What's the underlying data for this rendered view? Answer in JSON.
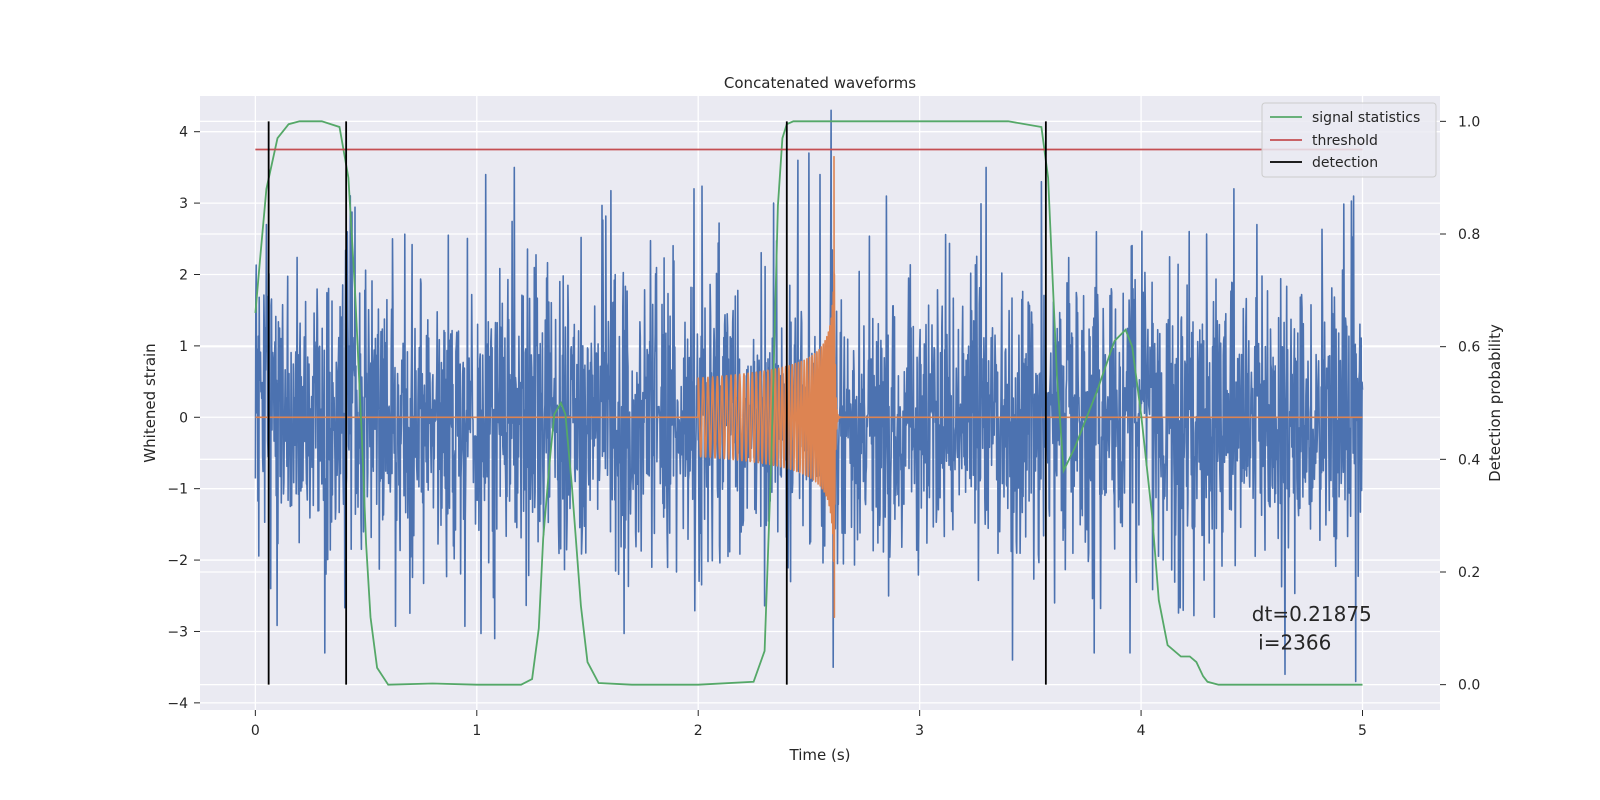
{
  "chart_data": {
    "type": "line",
    "title": "Concatenated waveforms",
    "xlabel": "Time (s)",
    "ylabel": "Whitened strain",
    "y2label": "Detection probability",
    "xlim": [
      -0.25,
      5.35
    ],
    "ylim": [
      -4.1,
      4.5
    ],
    "y2lim": [
      -0.045,
      1.045
    ],
    "xticks": [
      0,
      1,
      2,
      3,
      4,
      5
    ],
    "yticks": [
      -4,
      -3,
      -2,
      -1,
      0,
      1,
      2,
      3,
      4
    ],
    "y2ticks": [
      0.0,
      0.2,
      0.4,
      0.6,
      0.8,
      1.0
    ],
    "xtick_labels": [
      "0",
      "1",
      "2",
      "3",
      "4",
      "5"
    ],
    "ytick_labels": [
      "−4",
      "−3",
      "−2",
      "−1",
      "0",
      "1",
      "2",
      "3",
      "4"
    ],
    "y2tick_labels": [
      "0.0",
      "0.2",
      "0.4",
      "0.6",
      "0.8",
      "1.0"
    ],
    "grid": true,
    "legend_position": "top-right",
    "legend": [
      {
        "label": "signal statistics",
        "color": "#55a868"
      },
      {
        "label": "threshold",
        "color": "#c44e52"
      },
      {
        "label": "detection",
        "color": "#000000"
      }
    ],
    "colors": {
      "noise": "#4c72b0",
      "injection": "#dd8452",
      "signal_statistics": "#55a868",
      "threshold": "#c44e52",
      "detection": "#000000",
      "plot_background": "#eaeaf2",
      "grid": "#ffffff"
    },
    "series": [
      {
        "role": "noise",
        "axis": "left",
        "x_range": [
          0,
          5
        ],
        "typical_amplitude": 1.0,
        "peaks": [
          {
            "x": 0.05,
            "y": 2.7
          },
          {
            "x": 0.07,
            "y": -2.4
          },
          {
            "x": 0.62,
            "y": 2.5
          },
          {
            "x": 1.04,
            "y": 3.4
          },
          {
            "x": 1.08,
            "y": -3.1
          },
          {
            "x": 1.17,
            "y": 3.5
          },
          {
            "x": 1.64,
            "y": -2.2
          },
          {
            "x": 1.79,
            "y": -2.1
          },
          {
            "x": 1.98,
            "y": 3.2
          },
          {
            "x": 2.34,
            "y": 3.0
          },
          {
            "x": 2.45,
            "y": 3.6
          },
          {
            "x": 2.5,
            "y": 3.7
          },
          {
            "x": 2.55,
            "y": 3.4
          },
          {
            "x": 2.6,
            "y": 4.3
          },
          {
            "x": 2.61,
            "y": -3.5
          },
          {
            "x": 2.85,
            "y": 3.1
          },
          {
            "x": 3.3,
            "y": 3.5
          },
          {
            "x": 3.42,
            "y": -3.4
          },
          {
            "x": 3.55,
            "y": 3.3
          },
          {
            "x": 3.61,
            "y": -2.6
          },
          {
            "x": 4.33,
            "y": -2.8
          },
          {
            "x": 4.42,
            "y": 3.2
          },
          {
            "x": 4.65,
            "y": -3.6
          },
          {
            "x": 4.96,
            "y": 3.1
          },
          {
            "x": 4.97,
            "y": -3.7
          }
        ]
      },
      {
        "role": "injection",
        "axis": "left",
        "x_range": [
          0,
          5
        ],
        "chirp_start": 2.0,
        "merger_time": 2.615,
        "start_amplitude": 0.55,
        "peak_value": 3.65,
        "min_value": -2.8,
        "ringdown_end": 2.9
      },
      {
        "name": "signal statistics",
        "axis": "right",
        "x": [
          0.0,
          0.02,
          0.05,
          0.1,
          0.15,
          0.2,
          0.3,
          0.38,
          0.42,
          0.45,
          0.48,
          0.5,
          0.52,
          0.55,
          0.6,
          0.8,
          1.0,
          1.2,
          1.25,
          1.28,
          1.3,
          1.33,
          1.35,
          1.38,
          1.4,
          1.43,
          1.47,
          1.5,
          1.55,
          1.7,
          2.0,
          2.25,
          2.3,
          2.33,
          2.36,
          2.38,
          2.4,
          2.43,
          2.45,
          2.5,
          3.0,
          3.4,
          3.55,
          3.58,
          3.62,
          3.65,
          3.7,
          3.8,
          3.88,
          3.93,
          3.96,
          4.0,
          4.05,
          4.08,
          4.12,
          4.18,
          4.22,
          4.25,
          4.28,
          4.3,
          4.35,
          4.5,
          5.0
        ],
        "y": [
          0.66,
          0.75,
          0.88,
          0.97,
          0.995,
          1.0,
          1.0,
          0.99,
          0.9,
          0.7,
          0.45,
          0.25,
          0.12,
          0.03,
          0.0,
          0.002,
          0.0,
          0.0,
          0.01,
          0.1,
          0.26,
          0.4,
          0.48,
          0.5,
          0.48,
          0.35,
          0.14,
          0.04,
          0.003,
          0.0,
          0.0,
          0.005,
          0.06,
          0.4,
          0.85,
          0.97,
          0.995,
          1.0,
          1.0,
          1.0,
          1.0,
          1.0,
          0.99,
          0.9,
          0.55,
          0.38,
          0.42,
          0.52,
          0.61,
          0.63,
          0.6,
          0.48,
          0.3,
          0.15,
          0.07,
          0.05,
          0.05,
          0.04,
          0.015,
          0.005,
          0.0,
          0.0,
          0.0
        ]
      },
      {
        "name": "threshold",
        "axis": "right",
        "x": [
          0,
          5
        ],
        "y": [
          0.95,
          0.95
        ]
      },
      {
        "name": "detection",
        "axis": "right",
        "type": "vertical_lines",
        "x": [
          0.06,
          0.41,
          2.4,
          3.57
        ],
        "y_range": [
          0.0,
          1.0
        ]
      }
    ],
    "annotations": [
      {
        "text": "dt=0.21875",
        "x": 4.5,
        "y": -2.85
      },
      {
        "text": " i=2366",
        "x": 4.5,
        "y": -3.25
      }
    ]
  }
}
